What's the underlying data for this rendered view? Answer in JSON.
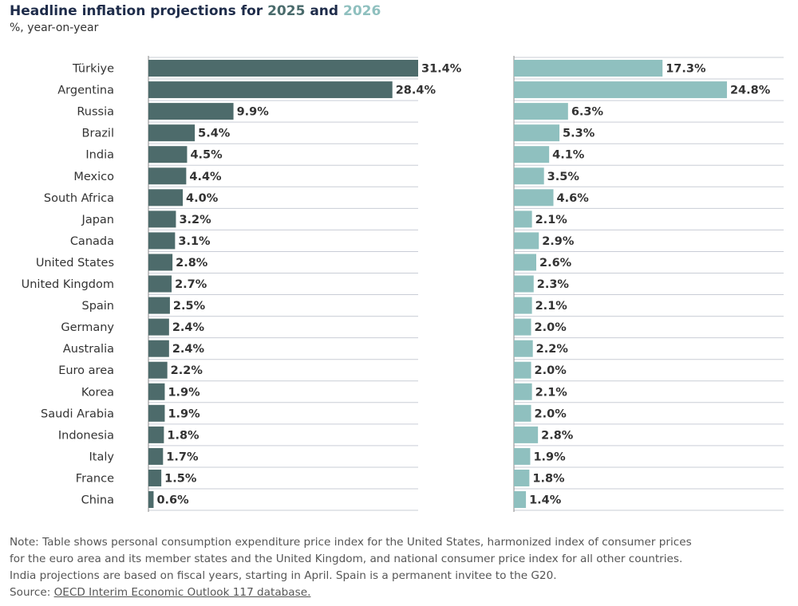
{
  "header": {
    "title_prefix": "Headline inflation projections for ",
    "year_a": "2025",
    "title_mid": " and ",
    "year_b": "2026",
    "subtitle": "%, year-on-year"
  },
  "colors": {
    "series_2025": "#4d6b6b",
    "series_2026": "#8fc0bf",
    "grid": "#c9cdd6",
    "label": "#333333"
  },
  "chart_data": {
    "type": "bar",
    "orientation": "horizontal",
    "categories": [
      "Türkiye",
      "Argentina",
      "Russia",
      "Brazil",
      "India",
      "Mexico",
      "South Africa",
      "Japan",
      "Canada",
      "United States",
      "United Kingdom",
      "Spain",
      "Germany",
      "Australia",
      "Euro area",
      "Korea",
      "Saudi Arabia",
      "Indonesia",
      "Italy",
      "France",
      "China"
    ],
    "series": [
      {
        "name": "2025",
        "values": [
          31.4,
          28.4,
          9.9,
          5.4,
          4.5,
          4.4,
          4.0,
          3.2,
          3.1,
          2.8,
          2.7,
          2.5,
          2.4,
          2.4,
          2.2,
          1.9,
          1.9,
          1.8,
          1.7,
          1.5,
          0.6
        ]
      },
      {
        "name": "2026",
        "values": [
          17.3,
          24.8,
          6.3,
          5.3,
          4.1,
          3.5,
          4.6,
          2.1,
          2.9,
          2.6,
          2.3,
          2.1,
          2.0,
          2.2,
          2.0,
          2.1,
          2.0,
          2.8,
          1.9,
          1.8,
          1.4
        ]
      }
    ],
    "value_suffix": "%",
    "xlim": [
      0,
      31.4
    ],
    "grid": true
  },
  "footer": {
    "note_1": "Note: Table shows personal consumption expenditure price index for the United States, harmonized index of consumer prices",
    "note_2": "for the euro area and its member states and the United Kingdom, and national consumer price index for all other countries.",
    "note_3": "India projections are based on fiscal years, starting in April. Spain is a permanent invitee to the G20.",
    "source_label": "Source: ",
    "source_link": "OECD Interim Economic Outlook 117 database."
  }
}
